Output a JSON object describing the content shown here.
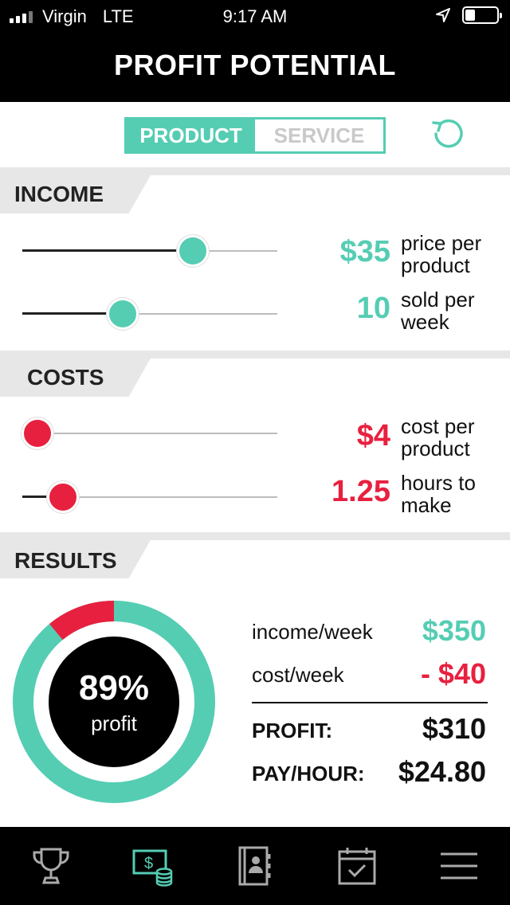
{
  "status": {
    "carrier": "Virgin",
    "network": "LTE",
    "time": "9:17 AM"
  },
  "header": {
    "title": "PROFIT POTENTIAL"
  },
  "toggle": {
    "product_label": "PRODUCT",
    "service_label": "SERVICE",
    "selected": "PRODUCT"
  },
  "income": {
    "label": "INCOME",
    "price": {
      "value": "$35",
      "desc_line1": "price per",
      "desc_line2": "product",
      "slider_level": 0.67
    },
    "sold": {
      "value": "10",
      "desc_line1": "sold per",
      "desc_line2": "week",
      "slider_level": 0.395
    }
  },
  "costs": {
    "label": "COSTS",
    "cost": {
      "value": "$4",
      "desc_line1": "cost per",
      "desc_line2": "product",
      "slider_level": 0.06
    },
    "hours": {
      "value": "1.25",
      "desc_line1": "hours to",
      "desc_line2": "make",
      "slider_level": 0.16
    }
  },
  "results": {
    "label": "RESULTS",
    "percent": "89%",
    "percent_label": "profit",
    "profit_fraction": 0.89,
    "income_label": "income/week",
    "income_value": "$350",
    "cost_label": "cost/week",
    "cost_value": "- $40",
    "profit_label": "PROFIT:",
    "profit_value": "$310",
    "payhour_label": "PAY/HOUR:",
    "payhour_value": "$24.80"
  },
  "colors": {
    "teal": "#55cdb3",
    "red": "#e8203f",
    "black": "#000000",
    "gray": "#e7e7e7"
  },
  "tabs": [
    {
      "icon": "trophy-icon",
      "active": false
    },
    {
      "icon": "money-coins-icon",
      "active": true
    },
    {
      "icon": "contact-book-icon",
      "active": false
    },
    {
      "icon": "calendar-check-icon",
      "active": false
    },
    {
      "icon": "menu-icon",
      "active": false
    }
  ]
}
